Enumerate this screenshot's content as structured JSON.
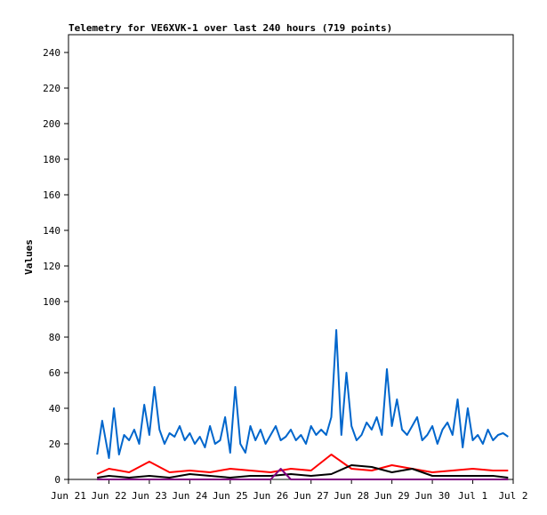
{
  "chart_data": {
    "type": "line",
    "title": "Telemetry for VE6XVK-1 over last 240 hours (719 points)",
    "xlabel": "",
    "ylabel": "Values",
    "xlim": [
      "Jun 21",
      "Jul 2"
    ],
    "ylim": [
      0,
      250
    ],
    "grid": false,
    "legend": "none",
    "x_ticks": [
      "Jun 21",
      "Jun 22",
      "Jun 23",
      "Jun 24",
      "Jun 25",
      "Jun 26",
      "Jun 27",
      "Jun 28",
      "Jun 29",
      "Jun 30",
      "Jul 1",
      "Jul 2"
    ],
    "y_ticks": [
      0,
      20,
      40,
      60,
      80,
      100,
      120,
      140,
      160,
      180,
      200,
      220,
      240
    ],
    "series": [
      {
        "color": "#0066cc",
        "x": [
          "Jun 21 17:00",
          "Jun 21 20:00",
          "Jun 22 00:00",
          "Jun 22 03:00",
          "Jun 22 06:00",
          "Jun 22 09:00",
          "Jun 22 12:00",
          "Jun 22 15:00",
          "Jun 22 18:00",
          "Jun 22 21:00",
          "Jun 23 00:00",
          "Jun 23 03:00",
          "Jun 23 06:00",
          "Jun 23 09:00",
          "Jun 23 12:00",
          "Jun 23 15:00",
          "Jun 23 18:00",
          "Jun 23 21:00",
          "Jun 24 00:00",
          "Jun 24 03:00",
          "Jun 24 06:00",
          "Jun 24 09:00",
          "Jun 24 12:00",
          "Jun 24 15:00",
          "Jun 24 18:00",
          "Jun 24 21:00",
          "Jun 25 00:00",
          "Jun 25 03:00",
          "Jun 25 06:00",
          "Jun 25 09:00",
          "Jun 25 12:00",
          "Jun 25 15:00",
          "Jun 25 18:00",
          "Jun 25 21:00",
          "Jun 26 00:00",
          "Jun 26 03:00",
          "Jun 26 06:00",
          "Jun 26 09:00",
          "Jun 26 12:00",
          "Jun 26 15:00",
          "Jun 26 18:00",
          "Jun 26 21:00",
          "Jun 27 00:00",
          "Jun 27 03:00",
          "Jun 27 06:00",
          "Jun 27 09:00",
          "Jun 27 12:00",
          "Jun 27 15:00",
          "Jun 27 18:00",
          "Jun 27 21:00",
          "Jun 28 00:00",
          "Jun 28 03:00",
          "Jun 28 06:00",
          "Jun 28 09:00",
          "Jun 28 12:00",
          "Jun 28 15:00",
          "Jun 28 18:00",
          "Jun 28 21:00",
          "Jun 29 00:00",
          "Jun 29 03:00",
          "Jun 29 06:00",
          "Jun 29 09:00",
          "Jun 29 12:00",
          "Jun 29 15:00",
          "Jun 29 18:00",
          "Jun 29 21:00",
          "Jun 30 00:00",
          "Jun 30 03:00",
          "Jun 30 06:00",
          "Jun 30 09:00",
          "Jun 30 12:00",
          "Jun 30 15:00",
          "Jun 30 18:00",
          "Jun 30 21:00",
          "Jul 1 00:00",
          "Jul 1 03:00",
          "Jul 1 06:00",
          "Jul 1 09:00",
          "Jul 1 12:00",
          "Jul 1 15:00",
          "Jul 1 18:00",
          "Jul 1 21:00"
        ],
        "values": [
          14,
          33,
          12,
          40,
          14,
          25,
          22,
          28,
          20,
          42,
          25,
          52,
          28,
          20,
          26,
          24,
          30,
          22,
          26,
          20,
          24,
          18,
          30,
          20,
          22,
          35,
          15,
          52,
          20,
          15,
          30,
          22,
          28,
          20,
          25,
          30,
          22,
          24,
          28,
          22,
          25,
          20,
          30,
          25,
          28,
          25,
          35,
          84,
          25,
          60,
          30,
          22,
          25,
          32,
          28,
          35,
          25,
          62,
          30,
          45,
          28,
          25,
          30,
          35,
          22,
          25,
          30,
          20,
          28,
          32,
          25,
          45,
          18,
          40,
          22,
          25,
          20,
          28,
          22,
          25,
          26,
          24
        ]
      },
      {
        "color": "#ff0000",
        "x": [
          "Jun 21 17:00",
          "Jun 22 00:00",
          "Jun 22 12:00",
          "Jun 23 00:00",
          "Jun 23 12:00",
          "Jun 24 00:00",
          "Jun 24 12:00",
          "Jun 25 00:00",
          "Jun 25 12:00",
          "Jun 26 00:00",
          "Jun 26 12:00",
          "Jun 27 00:00",
          "Jun 27 12:00",
          "Jun 28 00:00",
          "Jun 28 12:00",
          "Jun 29 00:00",
          "Jun 29 12:00",
          "Jun 30 00:00",
          "Jun 30 12:00",
          "Jul 1 00:00",
          "Jul 1 12:00",
          "Jul 1 21:00"
        ],
        "values": [
          3,
          6,
          4,
          10,
          4,
          5,
          4,
          6,
          5,
          4,
          6,
          5,
          14,
          6,
          5,
          8,
          6,
          4,
          5,
          6,
          5,
          5
        ]
      },
      {
        "color": "#000000",
        "x": [
          "Jun 21 17:00",
          "Jun 22 00:00",
          "Jun 22 12:00",
          "Jun 23 00:00",
          "Jun 23 12:00",
          "Jun 24 00:00",
          "Jun 24 12:00",
          "Jun 25 00:00",
          "Jun 25 12:00",
          "Jun 26 00:00",
          "Jun 26 12:00",
          "Jun 27 00:00",
          "Jun 27 12:00",
          "Jun 28 00:00",
          "Jun 28 12:00",
          "Jun 29 00:00",
          "Jun 29 12:00",
          "Jun 30 00:00",
          "Jun 30 12:00",
          "Jul 1 00:00",
          "Jul 1 12:00",
          "Jul 1 21:00"
        ],
        "values": [
          1,
          2,
          1,
          2,
          1,
          3,
          2,
          1,
          2,
          2,
          3,
          2,
          3,
          8,
          7,
          4,
          6,
          2,
          2,
          2,
          2,
          1
        ]
      },
      {
        "color": "#800080",
        "x": [
          "Jun 21 17:00",
          "Jun 22 12:00",
          "Jun 23 12:00",
          "Jun 24 12:00",
          "Jun 25 12:00",
          "Jun 26 00:00",
          "Jun 26 06:00",
          "Jun 26 12:00",
          "Jun 27 00:00",
          "Jun 28 00:00",
          "Jun 29 00:00",
          "Jun 30 00:00",
          "Jul 1 00:00",
          "Jul 1 21:00"
        ],
        "values": [
          0,
          0,
          0,
          0,
          0,
          0,
          6,
          0,
          0,
          0,
          0,
          0,
          0,
          0
        ]
      }
    ]
  }
}
